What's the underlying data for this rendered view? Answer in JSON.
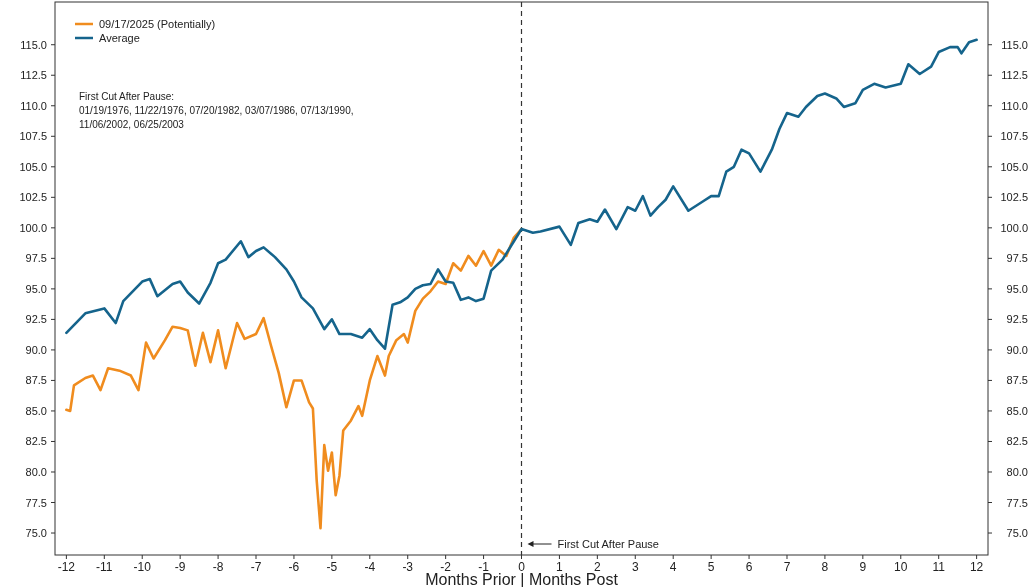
{
  "chart_data": {
    "type": "line",
    "xlabel": "Months Prior | Months Post",
    "legend": "top left",
    "line_style": "solid",
    "grid": false,
    "xlim": [
      -12.3,
      12.3
    ],
    "xticks": [
      -12,
      -11,
      -10,
      -9,
      -8,
      -7,
      -6,
      -5,
      -4,
      -3,
      -2,
      -1,
      0,
      1,
      2,
      3,
      4,
      5,
      6,
      7,
      8,
      9,
      10,
      11,
      12
    ],
    "ylim": [
      73.2,
      118.5
    ],
    "yticks": [
      {
        "value": 75,
        "label": "75.0"
      },
      {
        "value": 77.5,
        "label": "77.5"
      },
      {
        "value": 80,
        "label": "80.0"
      },
      {
        "value": 82.5,
        "label": "82.5"
      },
      {
        "value": 85,
        "label": "85.0"
      },
      {
        "value": 87.5,
        "label": "87.5"
      },
      {
        "value": 90,
        "label": "90.0"
      },
      {
        "value": 92.5,
        "label": "92.5"
      },
      {
        "value": 95,
        "label": "95.0"
      },
      {
        "value": 97.5,
        "label": "97.5"
      },
      {
        "value": 100,
        "label": "100.0"
      },
      {
        "value": 102.5,
        "label": "102.5"
      },
      {
        "value": 105,
        "label": "105.0"
      },
      {
        "value": 107.5,
        "label": "107.5"
      },
      {
        "value": 110,
        "label": "110.0"
      },
      {
        "value": 112.5,
        "label": "112.5"
      },
      {
        "value": 115,
        "label": "115.0"
      }
    ],
    "y2lim": [
      73.2,
      118.5
    ],
    "y2ticks": [
      {
        "value": 75,
        "label": "75.0"
      },
      {
        "value": 77.5,
        "label": "77.5"
      },
      {
        "value": 80,
        "label": "80.0"
      },
      {
        "value": 82.5,
        "label": "82.5"
      },
      {
        "value": 85,
        "label": "85.0"
      },
      {
        "value": 87.5,
        "label": "87.5"
      },
      {
        "value": 90,
        "label": "90.0"
      },
      {
        "value": 92.5,
        "label": "92.5"
      },
      {
        "value": 95,
        "label": "95.0"
      },
      {
        "value": 97.5,
        "label": "97.5"
      },
      {
        "value": 100,
        "label": "100.0"
      },
      {
        "value": 102.5,
        "label": "102.5"
      },
      {
        "value": 105,
        "label": "105.0"
      },
      {
        "value": 107.5,
        "label": "107.5"
      },
      {
        "value": 110,
        "label": "110.0"
      },
      {
        "value": 112.5,
        "label": "112.5"
      },
      {
        "value": 115,
        "label": "115.0"
      }
    ],
    "ref_lines": [
      {
        "axis": "x",
        "value": 0,
        "label": "First Cut After Pause",
        "line_style": "dashed",
        "color": "#333333"
      }
    ],
    "annotations": [
      "First Cut After Pause:\n01/19/1976, 11/22/1976, 07/20/1982, 03/07/1986, 07/13/1990,\n11/06/2002, 06/25/2003"
    ],
    "series": [
      {
        "name": "09/17/2025 (Potentially)",
        "color": "#f08c1e",
        "x": [
          -12,
          -11.9,
          -11.8,
          -11.5,
          -11.3,
          -11.1,
          -10.9,
          -10.6,
          -10.3,
          -10.1,
          -9.9,
          -9.7,
          -9.4,
          -9.2,
          -9,
          -8.8,
          -8.6,
          -8.4,
          -8.2,
          -8,
          -7.8,
          -7.5,
          -7.3,
          -7,
          -6.8,
          -6.6,
          -6.4,
          -6.2,
          -6,
          -5.8,
          -5.6,
          -5.5,
          -5.4,
          -5.3,
          -5.2,
          -5.1,
          -5,
          -4.9,
          -4.8,
          -4.7,
          -4.5,
          -4.3,
          -4.2,
          -4,
          -3.8,
          -3.6,
          -3.5,
          -3.3,
          -3.1,
          -3,
          -2.8,
          -2.6,
          -2.4,
          -2.2,
          -2,
          -1.8,
          -1.6,
          -1.4,
          -1.2,
          -1,
          -0.8,
          -0.6,
          -0.4,
          -0.2,
          0
        ],
        "values": [
          85.1,
          85.0,
          87.1,
          87.7,
          87.9,
          86.7,
          88.5,
          88.3,
          87.9,
          86.7,
          90.6,
          89.3,
          90.8,
          91.9,
          91.8,
          91.6,
          88.7,
          91.4,
          89.0,
          91.6,
          88.5,
          92.2,
          90.9,
          91.3,
          92.6,
          90.3,
          88.1,
          85.3,
          87.5,
          87.5,
          85.7,
          85.2,
          79.3,
          75.4,
          82.2,
          80.1,
          81.6,
          78.1,
          79.7,
          83.4,
          84.2,
          85.4,
          84.6,
          87.5,
          89.5,
          87.9,
          89.5,
          90.8,
          91.3,
          90.6,
          93.2,
          94.2,
          94.8,
          95.6,
          95.4,
          97.1,
          96.5,
          97.7,
          96.9,
          98.1,
          96.9,
          98.2,
          97.7,
          99.2,
          99.9
        ]
      },
      {
        "name": "Average",
        "color": "#15648c",
        "x": [
          -12,
          -11.5,
          -11,
          -10.7,
          -10.5,
          -10,
          -9.8,
          -9.6,
          -9.2,
          -9,
          -8.8,
          -8.5,
          -8.2,
          -8,
          -7.8,
          -7.4,
          -7.2,
          -7,
          -6.8,
          -6.5,
          -6.2,
          -6,
          -5.8,
          -5.5,
          -5.2,
          -5,
          -4.8,
          -4.5,
          -4.2,
          -4,
          -3.8,
          -3.6,
          -3.4,
          -3.2,
          -3,
          -2.8,
          -2.6,
          -2.4,
          -2.2,
          -2,
          -1.8,
          -1.6,
          -1.4,
          -1.2,
          -1,
          -0.8,
          -0.5,
          -0.2,
          0,
          0.3,
          0.5,
          1,
          1.3,
          1.5,
          1.8,
          2,
          2.2,
          2.5,
          2.8,
          3,
          3.2,
          3.4,
          3.6,
          3.8,
          4,
          4.4,
          4.8,
          5,
          5.2,
          5.4,
          5.6,
          5.8,
          6,
          6.3,
          6.6,
          6.8,
          7,
          7.3,
          7.5,
          7.8,
          8,
          8.3,
          8.5,
          8.8,
          9,
          9.3,
          9.6,
          10,
          10.2,
          10.5,
          10.8,
          11,
          11.3,
          11.5,
          11.6,
          11.8,
          12
        ],
        "values": [
          91.4,
          93.0,
          93.4,
          92.2,
          94.0,
          95.6,
          95.8,
          94.4,
          95.4,
          95.6,
          94.7,
          93.8,
          95.5,
          97.1,
          97.4,
          98.9,
          97.6,
          98.1,
          98.4,
          97.6,
          96.6,
          95.6,
          94.3,
          93.4,
          91.7,
          92.5,
          91.3,
          91.3,
          91.0,
          91.7,
          90.8,
          90.1,
          93.7,
          93.9,
          94.3,
          95.0,
          95.3,
          95.4,
          96.6,
          95.6,
          95.5,
          94.1,
          94.3,
          94.0,
          94.2,
          96.5,
          97.4,
          98.9,
          99.9,
          99.6,
          99.7,
          100.1,
          98.6,
          100.4,
          100.7,
          100.5,
          101.5,
          99.9,
          101.7,
          101.4,
          102.6,
          101.0,
          101.7,
          102.3,
          103.4,
          101.4,
          102.2,
          102.6,
          102.6,
          104.6,
          105.0,
          106.4,
          106.1,
          104.6,
          106.4,
          108.1,
          109.4,
          109.1,
          109.9,
          110.8,
          111.0,
          110.6,
          109.9,
          110.2,
          111.3,
          111.8,
          111.5,
          111.8,
          113.4,
          112.6,
          113.2,
          114.4,
          114.8,
          114.8,
          114.3,
          115.2,
          115.4
        ]
      }
    ]
  }
}
